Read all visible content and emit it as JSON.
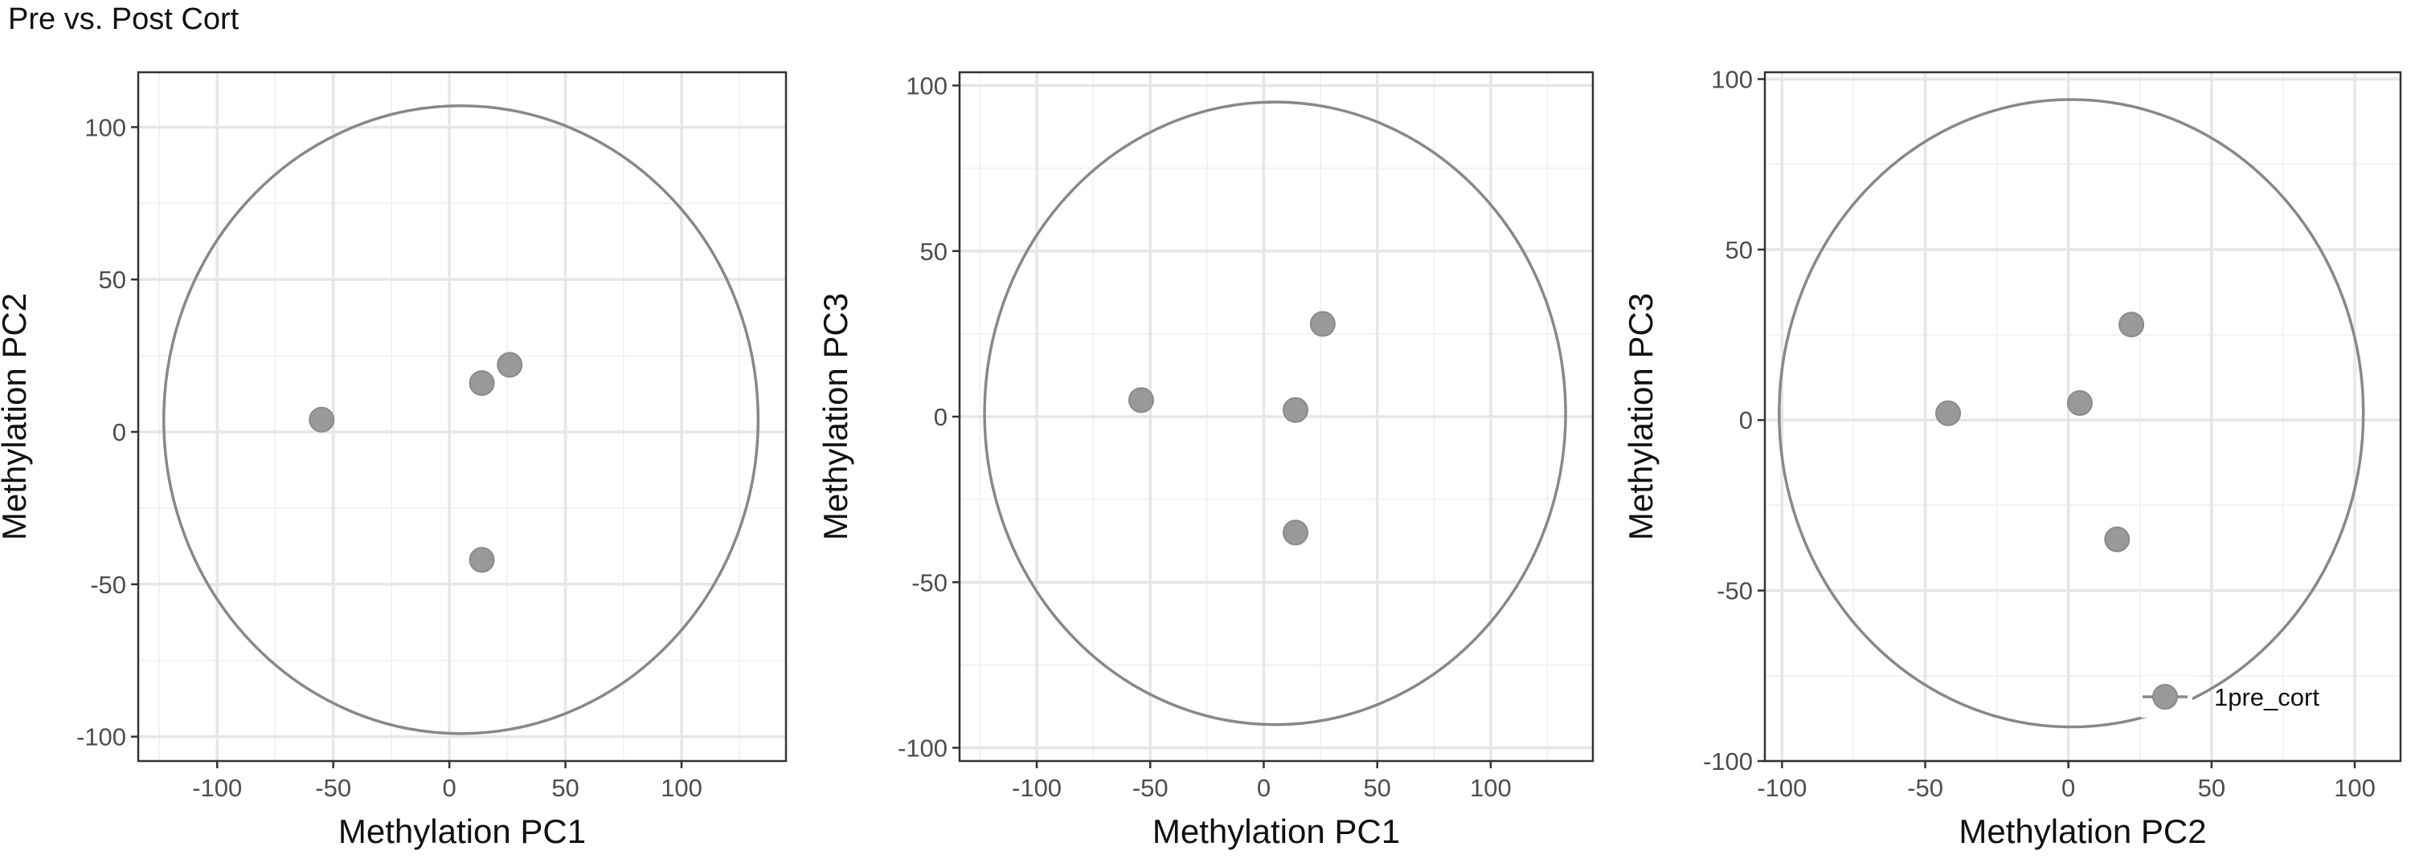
{
  "title": "Pre vs. Post Cort",
  "colors": {
    "point": "#999999",
    "point_stroke": "#8a8a8a",
    "ellipse": "#888888",
    "grid_major": "#e6e6e6",
    "grid_minor": "#f2f2f2",
    "panel_border": "#333333"
  },
  "legend": {
    "position": "bottom-right",
    "label": "1pre_cort"
  },
  "chart_data": [
    {
      "type": "scatter",
      "xlabel": "Methylation PC1",
      "ylabel": "Methylation PC2",
      "xlim": [
        -134,
        145
      ],
      "ylim": [
        -108,
        118
      ],
      "xticks": [
        -100,
        -50,
        0,
        50,
        100
      ],
      "yticks": [
        -100,
        -50,
        0,
        50,
        100
      ],
      "grid": true,
      "points": [
        {
          "x": -55,
          "y": 4
        },
        {
          "x": 14,
          "y": 16
        },
        {
          "x": 26,
          "y": 22
        },
        {
          "x": 14,
          "y": -42
        }
      ],
      "ellipse": {
        "cx": 5,
        "cy": 4,
        "rx": 128,
        "ry": 103
      }
    },
    {
      "type": "scatter",
      "xlabel": "Methylation PC1",
      "ylabel": "Methylation PC3",
      "xlim": [
        -134,
        145
      ],
      "ylim": [
        -104,
        104
      ],
      "xticks": [
        -100,
        -50,
        0,
        50,
        100
      ],
      "yticks": [
        -100,
        -50,
        0,
        50,
        100
      ],
      "grid": true,
      "points": [
        {
          "x": -54,
          "y": 5
        },
        {
          "x": 14,
          "y": 2
        },
        {
          "x": 26,
          "y": 28
        },
        {
          "x": 14,
          "y": -35
        }
      ],
      "ellipse": {
        "cx": 5,
        "cy": 1,
        "rx": 128,
        "ry": 94
      }
    },
    {
      "type": "scatter",
      "xlabel": "Methylation PC2",
      "ylabel": "Methylation PC3",
      "xlim": [
        -106,
        116
      ],
      "ylim": [
        -100,
        102
      ],
      "xticks": [
        -100,
        -50,
        0,
        50,
        100
      ],
      "yticks": [
        -100,
        -50,
        0,
        50,
        100
      ],
      "grid": true,
      "points": [
        {
          "x": -42,
          "y": 2
        },
        {
          "x": 4,
          "y": 5
        },
        {
          "x": 22,
          "y": 28
        },
        {
          "x": 17,
          "y": -35
        }
      ],
      "ellipse": {
        "cx": 1,
        "cy": 2,
        "rx": 102,
        "ry": 92
      }
    }
  ]
}
